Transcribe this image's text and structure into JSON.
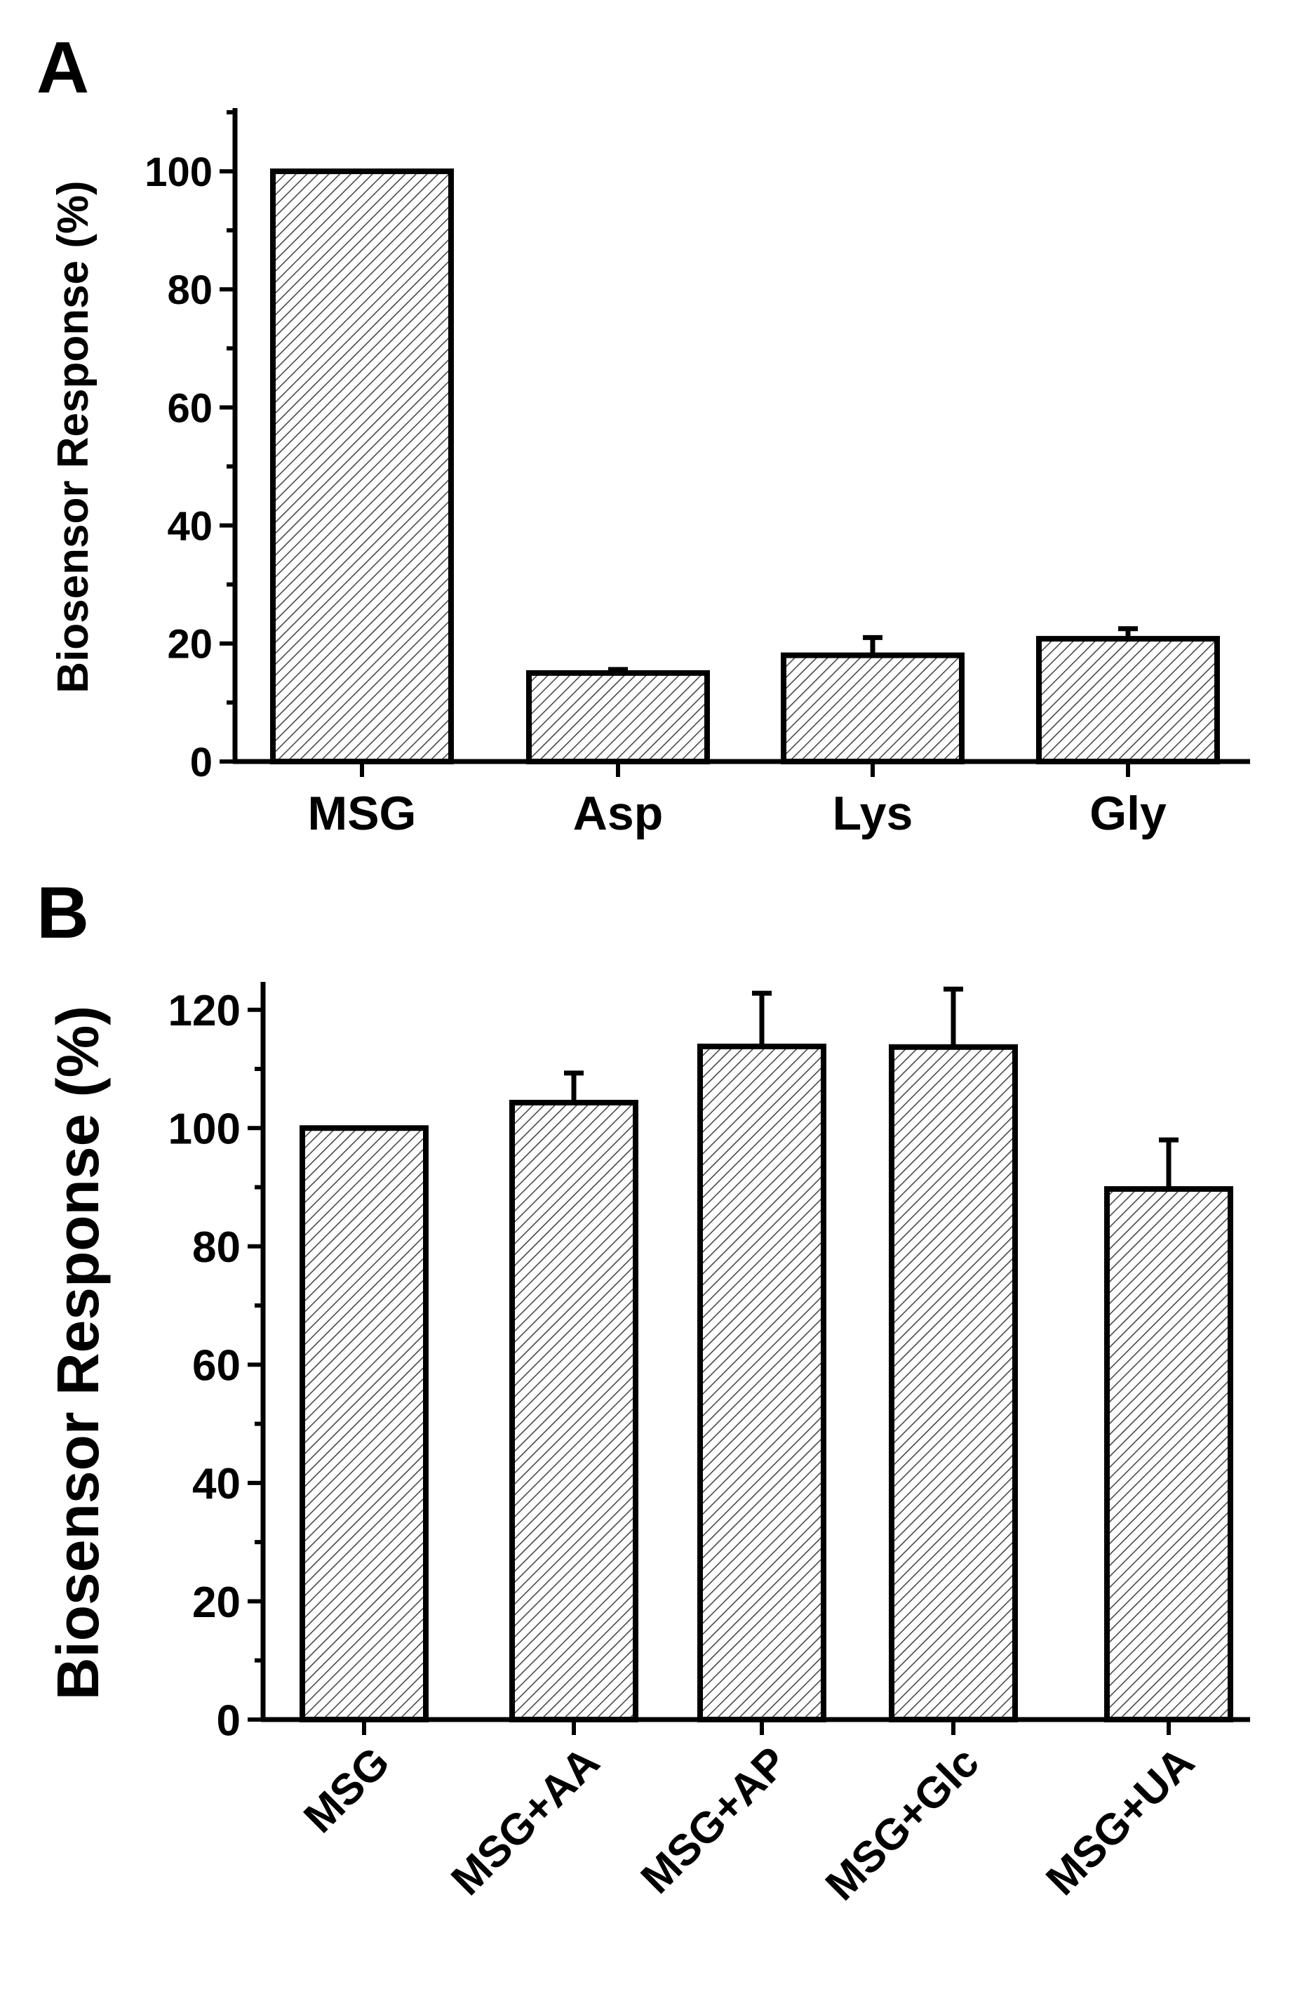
{
  "chart_data": [
    {
      "panel": "A",
      "type": "bar",
      "title": "",
      "xlabel": "",
      "ylabel": "Biosensor Response (%)",
      "ylim": [
        0,
        110
      ],
      "yticks": [
        0,
        20,
        40,
        60,
        80,
        100
      ],
      "categories": [
        "MSG",
        "Asp",
        "Lys",
        "Gly"
      ],
      "values": [
        100,
        15,
        18,
        20.8
      ],
      "errors": [
        0,
        0.6,
        3,
        1.7
      ],
      "pattern": "diagonal hatch",
      "grid": false
    },
    {
      "panel": "B",
      "type": "bar",
      "title": "",
      "xlabel": "",
      "ylabel": "Biosensor Response (%)",
      "ylim": [
        0,
        124
      ],
      "yticks": [
        0,
        20,
        40,
        60,
        80,
        100,
        120
      ],
      "categories": [
        "MSG",
        "MSG+AA",
        "MSG+AP",
        "MSG+Glc",
        "MSG+UA"
      ],
      "values": [
        100,
        104.3,
        113.8,
        113.7,
        89.7
      ],
      "errors": [
        0,
        5,
        9,
        9.8,
        8.3
      ],
      "pattern": "diagonal hatch",
      "grid": false
    }
  ],
  "colors": {
    "bar_fill": "#ffffff",
    "hatch": "#444444",
    "axis": "#000000"
  }
}
